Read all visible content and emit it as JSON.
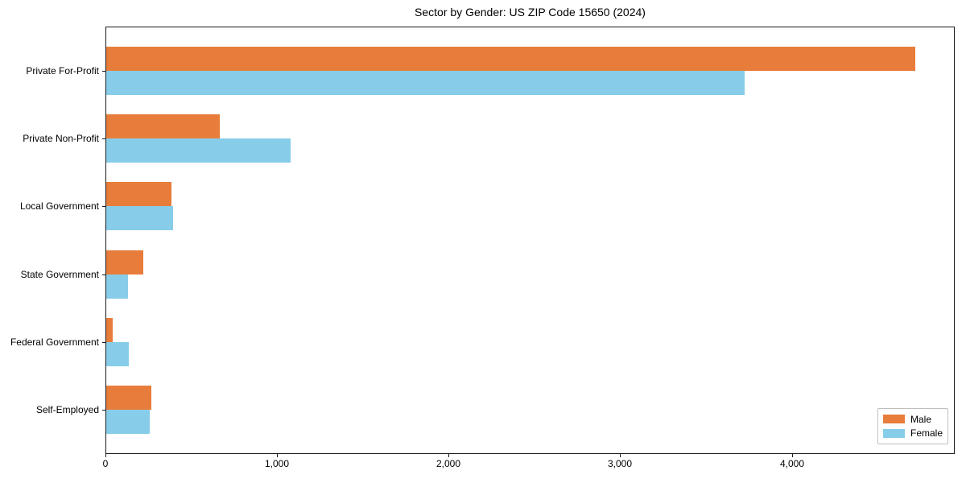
{
  "chart_data": {
    "type": "bar",
    "orientation": "horizontal",
    "title": "Sector by Gender: US ZIP Code 15650 (2024)",
    "categories": [
      "Private For-Profit",
      "Private Non-Profit",
      "Local Government",
      "State Government",
      "Federal Government",
      "Self-Employed"
    ],
    "series": [
      {
        "name": "Male",
        "color": "#e87d3b",
        "values": [
          4715,
          660,
          380,
          215,
          38,
          265
        ]
      },
      {
        "name": "Female",
        "color": "#87cde9",
        "values": [
          3720,
          1075,
          390,
          125,
          130,
          255
        ]
      }
    ],
    "xlabel": "",
    "ylabel": "",
    "xlim": [
      0,
      4950
    ],
    "x_ticks": [
      0,
      1000,
      2000,
      3000,
      4000
    ],
    "x_tick_labels": [
      "0",
      "1,000",
      "2,000",
      "3,000",
      "4,000"
    ],
    "grid": false,
    "legend": {
      "position": "lower right",
      "entries": [
        "Male",
        "Female"
      ]
    }
  }
}
